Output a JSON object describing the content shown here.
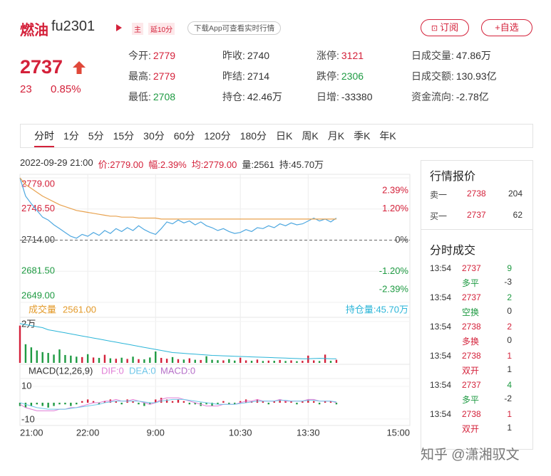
{
  "header": {
    "name": "燃油",
    "code": "fu2301",
    "tag_main": "主",
    "tag_delay": "延10分",
    "download": "下载App可查看实时行情",
    "subscribe": "订阅",
    "watchlist": "+自选"
  },
  "quote": {
    "price": 2737,
    "change": 23,
    "change_pct": "0.85%",
    "color": "#d4213a"
  },
  "stats": [
    [
      {
        "label": "今开:",
        "value": 2779,
        "color": "#d4213a"
      },
      {
        "label": "昨收:",
        "value": 2740
      },
      {
        "label": "涨停:",
        "value": 3121,
        "color": "#d4213a"
      },
      {
        "label": "日成交量:",
        "value": "47.86万"
      }
    ],
    [
      {
        "label": "最高:",
        "value": 2779,
        "color": "#d4213a"
      },
      {
        "label": "昨结:",
        "value": 2714
      },
      {
        "label": "跌停:",
        "value": 2306,
        "color": "#1e9a42"
      },
      {
        "label": "日成交额:",
        "value": "130.93亿"
      }
    ],
    [
      {
        "label": "最低:",
        "value": 2708,
        "color": "#1e9a42"
      },
      {
        "label": "持仓:",
        "value": "42.46万"
      },
      {
        "label": "日增:",
        "value": -33380
      },
      {
        "label": "资金流向:",
        "value": "-2.78亿"
      }
    ]
  ],
  "tabs": {
    "items": [
      "分时",
      "1分",
      "5分",
      "15分",
      "30分",
      "60分",
      "120分",
      "180分",
      "日K",
      "周K",
      "月K",
      "季K",
      "年K"
    ],
    "selected": 0
  },
  "info": {
    "time": "2022-09-29 21:00",
    "price": "价:2779.00",
    "amp": "幅:2.39%",
    "avg": "均:2779.00",
    "vol": "量:2561",
    "oi": "持:45.70万"
  },
  "chart_data": [
    {
      "type": "line",
      "categories": [
        "21:00",
        null,
        null,
        null,
        null,
        null,
        null,
        null,
        null,
        null,
        null,
        null,
        "22:00",
        null,
        null,
        null,
        null,
        null,
        null,
        null,
        null,
        null,
        null,
        null,
        "9:00",
        null,
        null,
        null,
        null,
        null,
        null,
        null,
        null,
        null,
        null,
        null,
        null,
        null,
        null,
        "10:30",
        null,
        null,
        null,
        null,
        null,
        null,
        null,
        null,
        null,
        null,
        null,
        "13:30",
        null,
        null,
        null,
        null,
        null,
        null,
        null,
        null,
        null,
        null,
        null,
        null,
        null,
        null,
        null,
        null,
        null,
        "15:00"
      ],
      "series": [
        {
          "color": "#4fa8e0",
          "values": [
            2779,
            2760,
            2752,
            2745,
            2738,
            2735,
            2730,
            2726,
            2722,
            2718,
            2716,
            2720,
            2718,
            2722,
            2719,
            2724,
            2721,
            2726,
            2723,
            2727,
            2724,
            2729,
            2725,
            2722,
            2720,
            2726,
            2733,
            2731,
            2735,
            2732,
            2734,
            2730,
            2733,
            2729,
            2727,
            2724,
            2726,
            2723,
            2721,
            2722,
            2725,
            2723,
            2727,
            2726,
            2729,
            2727,
            2731,
            2729,
            2732,
            2730,
            2731,
            2734,
            2737,
            2734,
            2736,
            2733,
            2737,
            null,
            null,
            null,
            null,
            null,
            null,
            null,
            null,
            null,
            null,
            null,
            null,
            null
          ]
        },
        {
          "color": "#e8a24f",
          "values": [
            2779,
            2772,
            2768,
            2764,
            2760,
            2757,
            2754,
            2751,
            2749,
            2747,
            2745,
            2744,
            2743,
            2742,
            2741,
            2740,
            2739,
            2739,
            2738,
            2738,
            2738,
            2737,
            2737,
            2737,
            2737,
            2736,
            2736,
            2736,
            2736,
            2736,
            2736,
            2736,
            2736,
            2736,
            2736,
            2736,
            2736,
            2736,
            2736,
            2736,
            2736,
            2736,
            2736,
            2736,
            2736,
            2736,
            2736,
            2736,
            2736,
            2736,
            2736,
            2736,
            2736,
            2736,
            2736,
            2736,
            2736,
            null,
            null,
            null,
            null,
            null,
            null,
            null,
            null,
            null,
            null,
            null,
            null,
            null
          ]
        }
      ],
      "ylim": [
        2649,
        2779
      ],
      "yticks": [
        {
          "value": 2779,
          "label": "2779.00"
        },
        {
          "value": 2746.5,
          "label": "2746.50"
        },
        {
          "value": 2714,
          "label": "2714.00"
        },
        {
          "value": 2681.5,
          "label": "2681.50"
        },
        {
          "value": 2649,
          "label": "2649.00"
        }
      ],
      "y2lim": [
        -2.395,
        2.395
      ],
      "y2ticks": [
        {
          "value": 2.39,
          "label": "2.39%"
        },
        {
          "value": 1.2,
          "label": "1.20%"
        },
        {
          "value": 0,
          "label": "0%"
        },
        {
          "value": -1.2,
          "label": "-1.20%"
        },
        {
          "value": -2.39,
          "label": "-2.39%"
        }
      ],
      "up_color": "#d4213a",
      "down_color": "#1e9a42",
      "grid": true
    },
    {
      "type": "bar",
      "current": "2561.00",
      "series": [
        {
          "name": "成交量",
          "color": "#e39a2a",
          "values": [
            18000,
            9000,
            7500,
            6000,
            5200,
            4800,
            4000,
            6500,
            3800,
            3500,
            3000,
            2800,
            4200,
            2600,
            2400,
            3900,
            2200,
            2000,
            2500,
            1900,
            3000,
            1800,
            1700,
            2600,
            5500,
            2400,
            2000,
            2800,
            1800,
            1600,
            2200,
            1500,
            1400,
            3200,
            1500,
            1300,
            1200,
            1800,
            1100,
            2500,
            1200,
            1000,
            1600,
            900,
            1100,
            1000,
            1400,
            900,
            1200,
            800,
            1000,
            3500,
            1200,
            900,
            4000,
            1000,
            1500,
            null,
            null,
            null,
            null,
            null,
            null,
            null,
            null,
            null,
            null,
            null,
            null,
            null
          ]
        },
        {
          "name": "持仓量:45.70万",
          "color": "#2bb5d8",
          "axis": "y2",
          "values": [
            47.4,
            47.35,
            47.3,
            47.25,
            47.2,
            47.1,
            47.05,
            47,
            46.95,
            46.9,
            46.85,
            46.8,
            46.75,
            46.7,
            46.65,
            46.6,
            46.55,
            46.5,
            46.45,
            46.4,
            46.35,
            46.3,
            46.25,
            46.2,
            46.15,
            46.1,
            46.05,
            46,
            45.98,
            45.96,
            45.94,
            45.92,
            45.9,
            45.88,
            45.86,
            45.85,
            45.84,
            45.83,
            45.82,
            45.81,
            45.8,
            45.79,
            45.78,
            45.77,
            45.76,
            45.75,
            45.74,
            45.73,
            45.72,
            45.71,
            45.7,
            45.7,
            45.71,
            45.72,
            45.71,
            45.7,
            45.7,
            null,
            null,
            null,
            null,
            null,
            null,
            null,
            null,
            null,
            null,
            null,
            null,
            null
          ]
        }
      ],
      "ylim": [
        0,
        22000
      ],
      "yticks": [
        {
          "value": 20000,
          "label": "2万"
        }
      ],
      "y2lim": [
        45.5,
        47.7
      ]
    },
    {
      "type": "bar",
      "title": "MACD(12,26,9)",
      "series": [
        {
          "name": "DIF:0",
          "color": "#e07fd6",
          "values": [
            -1,
            -3,
            -4,
            -5,
            -5,
            -5,
            -5,
            -4,
            -4,
            -3,
            -3,
            -2,
            -1,
            0,
            0,
            1,
            1,
            2,
            1,
            1,
            2,
            1,
            0,
            -1,
            0,
            2,
            3,
            3,
            3,
            2,
            1,
            0,
            -1,
            -2,
            -2,
            -2,
            -1,
            -1,
            -1,
            0,
            1,
            1,
            2,
            1,
            1,
            1,
            2,
            1,
            1,
            1,
            1,
            2,
            2,
            1,
            1,
            1,
            0,
            null,
            null,
            null,
            null,
            null,
            null,
            null,
            null,
            null,
            null,
            null,
            null,
            null
          ]
        },
        {
          "name": "DEA:0",
          "color": "#6ec6e8",
          "values": [
            0,
            -1,
            -2,
            -3,
            -3.5,
            -4,
            -4,
            -4,
            -4,
            -3.5,
            -3,
            -2.5,
            -2,
            -1.5,
            -1,
            0,
            0.5,
            1,
            1,
            1,
            1,
            1,
            0.5,
            0,
            0,
            1,
            1.5,
            2,
            2,
            2,
            1.5,
            1,
            0.5,
            0,
            -0.5,
            -1,
            -1,
            -1,
            -1,
            -0.5,
            0,
            0.5,
            1,
            1,
            1,
            1,
            1.5,
            1.5,
            1,
            1,
            1,
            1.5,
            1.5,
            1,
            1,
            1,
            0.5,
            null,
            null,
            null,
            null,
            null,
            null,
            null,
            null,
            null,
            null,
            null,
            null,
            null
          ]
        },
        {
          "name": "MACD:0",
          "color": "#b56fc8",
          "values": [
            -2,
            -3,
            -2,
            -1,
            -2,
            -3,
            -2,
            -1,
            -1,
            -2,
            -1,
            1,
            2,
            1,
            -1,
            1,
            2,
            1,
            -1,
            2,
            1,
            -1,
            -2,
            -1,
            2,
            3,
            2,
            1,
            2,
            1,
            -1,
            -1,
            -2,
            -1,
            -2,
            -1,
            1,
            -1,
            -1,
            1,
            2,
            1,
            2,
            1,
            -1,
            1,
            2,
            1,
            1,
            -1,
            1,
            2,
            1,
            -1,
            1,
            1,
            -1,
            null,
            null,
            null,
            null,
            null,
            null,
            null,
            null,
            null,
            null,
            null,
            null,
            null
          ]
        }
      ],
      "ylim": [
        -14,
        14
      ],
      "yticks": [
        10,
        -10
      ]
    }
  ],
  "orderbook": {
    "title": "行情报价",
    "rows": [
      {
        "label": "卖一",
        "price": 2738,
        "volume": 204
      },
      {
        "label": "买一",
        "price": 2737,
        "volume": 62
      }
    ]
  },
  "trades": {
    "title": "分时成交",
    "rows": [
      {
        "time": "13:54",
        "price": 2737,
        "volume": 9,
        "type": "多平",
        "oi_change": -3,
        "color": "#1e9a42"
      },
      {
        "time": "13:54",
        "price": 2737,
        "volume": 2,
        "type": "空换",
        "oi_change": 0,
        "color": "#1e9a42"
      },
      {
        "time": "13:54",
        "price": 2738,
        "volume": 2,
        "type": "多换",
        "oi_change": 0,
        "color": "#d4213a"
      },
      {
        "time": "13:54",
        "price": 2738,
        "volume": 1,
        "type": "双开",
        "oi_change": 1,
        "color": "#d4213a"
      },
      {
        "time": "13:54",
        "price": 2737,
        "volume": 4,
        "type": "多平",
        "oi_change": -2,
        "color": "#1e9a42"
      },
      {
        "time": "13:54",
        "price": 2738,
        "volume": 1,
        "type": "双开",
        "oi_change": 1,
        "color": "#d4213a"
      }
    ]
  },
  "watermark": "知乎 @潇湘驭文"
}
